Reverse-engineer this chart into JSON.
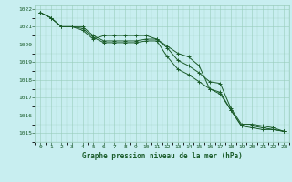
{
  "title": "Graphe pression niveau de la mer (hPa)",
  "background_color": "#c8eef0",
  "plot_bg_color": "#c8eef0",
  "grid_color": "#99ccbb",
  "line_color": "#1a5c2a",
  "x_ticks": [
    0,
    1,
    2,
    3,
    4,
    5,
    6,
    7,
    8,
    9,
    10,
    11,
    12,
    13,
    14,
    15,
    16,
    17,
    18,
    19,
    20,
    21,
    22,
    23
  ],
  "ylim": [
    1014.5,
    1022.2
  ],
  "yticks": [
    1015,
    1016,
    1017,
    1018,
    1019,
    1020,
    1021,
    1022
  ],
  "series": [
    [
      1021.8,
      1021.5,
      1021.0,
      1021.0,
      1021.0,
      1020.5,
      1020.2,
      1020.2,
      1020.2,
      1020.2,
      1020.3,
      1020.3,
      1019.8,
      1019.1,
      1018.8,
      1018.4,
      1017.9,
      1017.8,
      1016.4,
      1015.5,
      1015.5,
      1015.4,
      1015.3,
      1015.1
    ],
    [
      1021.8,
      1021.5,
      1021.0,
      1021.0,
      1020.9,
      1020.4,
      1020.1,
      1020.1,
      1020.1,
      1020.1,
      1020.2,
      1020.2,
      1019.3,
      1018.6,
      1018.3,
      1017.9,
      1017.5,
      1017.3,
      1016.3,
      1015.4,
      1015.4,
      1015.3,
      1015.2,
      1015.1
    ],
    [
      1021.8,
      1021.5,
      1021.0,
      1021.0,
      1020.8,
      1020.3,
      1020.5,
      1020.5,
      1020.5,
      1020.5,
      1020.5,
      1020.3,
      1019.9,
      1019.5,
      1019.3,
      1018.8,
      1017.5,
      1017.2,
      1016.3,
      1015.4,
      1015.3,
      1015.2,
      1015.2,
      1015.1
    ]
  ]
}
